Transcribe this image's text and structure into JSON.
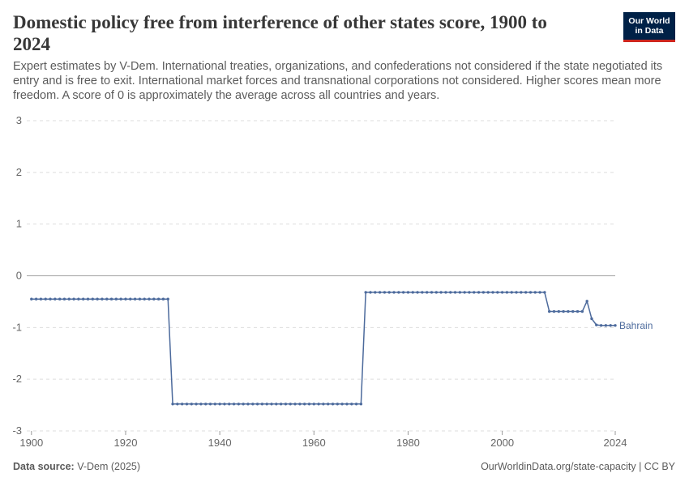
{
  "header": {
    "title": "Domestic policy free from interference of other states score, 1900 to 2024",
    "subtitle": "Expert estimates by V-Dem. International treaties, organizations, and confederations not considered if the state negotiated its entry and is free to exit. International market forces and transnational corporations not considered. Higher scores mean more freedom. A score of 0 is approximately the average across all countries and years.",
    "logo_line1": "Our World",
    "logo_line2": "in Data"
  },
  "footer": {
    "source_label": "Data source:",
    "source_value": "V-Dem (2025)",
    "credit": "OurWorldinData.org/state-capacity | CC BY"
  },
  "colors": {
    "series": "#4c6a9c",
    "grid": "#dddddd",
    "zero_line": "#a0a0a0",
    "logo_bg": "#002147",
    "logo_accent": "#ce261e"
  },
  "chart_data": {
    "type": "line",
    "title": "Domestic policy free from interference of other states score, 1900 to 2024",
    "xlabel": "",
    "ylabel": "",
    "xlim": [
      1899,
      2024
    ],
    "ylim": [
      -3,
      3
    ],
    "x_ticks": [
      "1900",
      "1920",
      "1940",
      "1960",
      "1980",
      "2000",
      "2024"
    ],
    "x_tick_values": [
      1900,
      1920,
      1940,
      1960,
      1980,
      2000,
      2024
    ],
    "y_ticks": [
      "3",
      "2",
      "1",
      "0",
      "-1",
      "-2",
      "-3"
    ],
    "y_tick_values": [
      3,
      2,
      1,
      0,
      -1,
      -2,
      -3
    ],
    "grid": true,
    "series": [
      {
        "name": "Bahrain",
        "segments": [
          {
            "from": 1900,
            "to": 1929,
            "value": -0.45
          },
          {
            "from": 1930,
            "to": 1970,
            "value": -2.48
          },
          {
            "from": 1971,
            "to": 2009,
            "value": -0.32
          },
          {
            "from": 2010,
            "to": 2017,
            "value": -0.69
          },
          {
            "from": 2018,
            "to": 2018,
            "value": -0.49
          },
          {
            "from": 2019,
            "to": 2019,
            "value": -0.83
          },
          {
            "from": 2020,
            "to": 2020,
            "value": -0.95
          },
          {
            "from": 2021,
            "to": 2024,
            "value": -0.96
          }
        ]
      }
    ]
  }
}
